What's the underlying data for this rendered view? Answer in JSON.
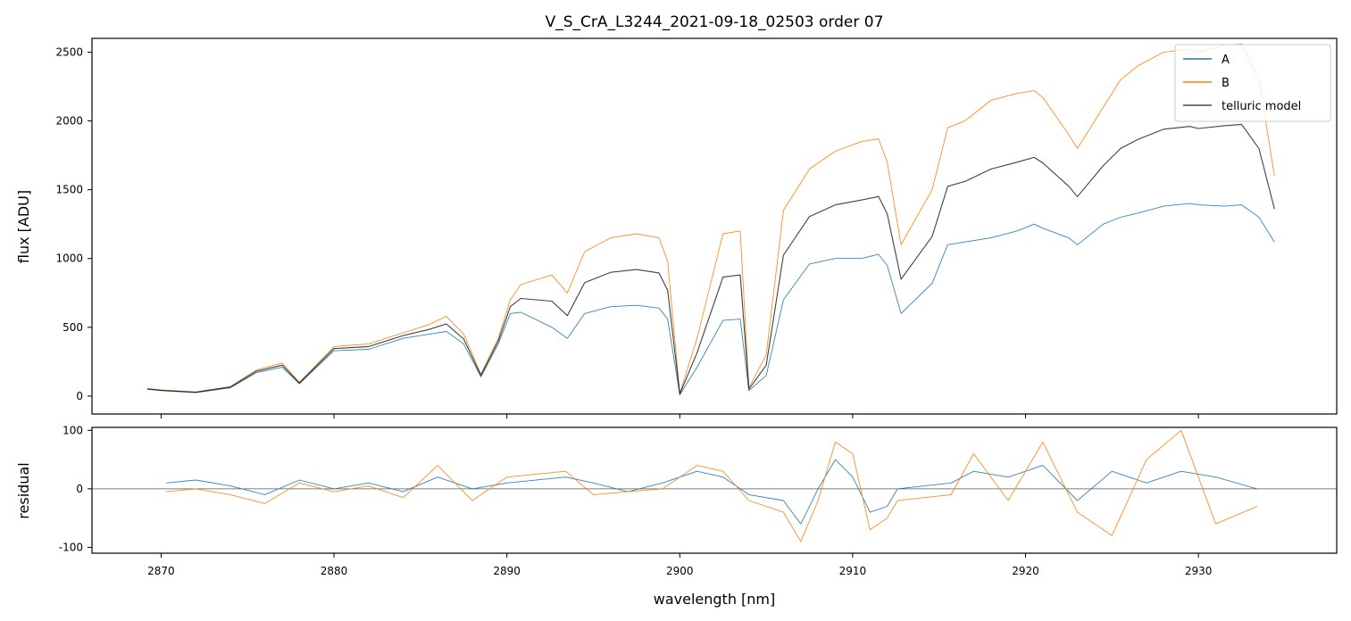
{
  "chart_data": [
    {
      "type": "line",
      "title": "V_S_CrA_L3244_2021-09-18_02503  order 07",
      "xlabel": "",
      "ylabel": "flux [ADU]",
      "xlim": [
        2866,
        2938
      ],
      "ylim": [
        -130,
        2600
      ],
      "xticks": [
        2870,
        2880,
        2890,
        2900,
        2910,
        2920,
        2930
      ],
      "yticks": [
        0,
        500,
        1000,
        1500,
        2000,
        2500
      ],
      "legend_position": "top-right",
      "series": [
        {
          "name": "A",
          "color": "#1f77b4",
          "x": [
            2869.2,
            2870,
            2872,
            2874,
            2875.5,
            2877,
            2878,
            2880,
            2882,
            2884,
            2885.5,
            2886.5,
            2887.5,
            2888.5,
            2889.5,
            2890.2,
            2890.8,
            2892.6,
            2893.5,
            2894.5,
            2896,
            2897.5,
            2898.8,
            2899.3,
            2900,
            2901,
            2902.5,
            2903.5,
            2904,
            2905,
            2906,
            2907.5,
            2909,
            2910.5,
            2911.5,
            2912,
            2912.8,
            2914.6,
            2915.5,
            2916.5,
            2918,
            2919.5,
            2920.5,
            2921,
            2922.5,
            2923,
            2924.5,
            2925.5,
            2926.5,
            2928,
            2929.5,
            2930,
            2931.5,
            2932.5,
            2933.5,
            2934.4
          ],
          "y": [
            50,
            40,
            25,
            60,
            170,
            210,
            90,
            330,
            340,
            420,
            450,
            470,
            380,
            140,
            380,
            600,
            610,
            500,
            420,
            600,
            650,
            660,
            640,
            560,
            10,
            210,
            550,
            560,
            40,
            150,
            700,
            960,
            1000,
            1000,
            1030,
            950,
            600,
            820,
            1100,
            1120,
            1150,
            1200,
            1250,
            1220,
            1150,
            1100,
            1250,
            1300,
            1330,
            1380,
            1400,
            1390,
            1380,
            1390,
            1300,
            1120
          ]
        },
        {
          "name": "B",
          "color": "#ff7f0e",
          "x": [
            2869.2,
            2870,
            2872,
            2874,
            2875.5,
            2877,
            2878,
            2880,
            2882,
            2884,
            2885.5,
            2886.5,
            2887.5,
            2888.5,
            2889.5,
            2890.2,
            2890.8,
            2892.6,
            2893.5,
            2894.5,
            2896,
            2897.5,
            2898.8,
            2899.3,
            2900,
            2901,
            2902.5,
            2903.5,
            2904,
            2905,
            2906,
            2907.5,
            2909,
            2910.5,
            2911.5,
            2912,
            2912.8,
            2914.6,
            2915.5,
            2916.5,
            2918,
            2919.5,
            2920.5,
            2921,
            2922.5,
            2923,
            2924.5,
            2925.5,
            2926.5,
            2928,
            2929.5,
            2930,
            2931.5,
            2932.5,
            2933.5,
            2934.4
          ],
          "y": [
            55,
            45,
            30,
            70,
            190,
            240,
            100,
            360,
            380,
            460,
            520,
            580,
            450,
            160,
            420,
            700,
            810,
            880,
            750,
            1050,
            1150,
            1180,
            1150,
            980,
            20,
            420,
            1180,
            1200,
            60,
            300,
            1350,
            1650,
            1780,
            1850,
            1870,
            1700,
            1100,
            1500,
            1950,
            2000,
            2150,
            2200,
            2220,
            2170,
            1900,
            1800,
            2100,
            2300,
            2400,
            2500,
            2520,
            2500,
            2550,
            2560,
            2300,
            1600
          ]
        },
        {
          "name": "telluric model",
          "color": "#000000",
          "x": [
            2869.2,
            2870,
            2872,
            2874,
            2875.5,
            2877,
            2878,
            2880,
            2882,
            2884,
            2885.5,
            2886.5,
            2887.5,
            2888.5,
            2889.5,
            2890.2,
            2890.8,
            2892.6,
            2893.5,
            2894.5,
            2896,
            2897.5,
            2898.8,
            2899.3,
            2900,
            2901,
            2902.5,
            2903.5,
            2904,
            2905,
            2906,
            2907.5,
            2909,
            2910.5,
            2911.5,
            2912,
            2912.8,
            2914.6,
            2915.5,
            2916.5,
            2918,
            2919.5,
            2920.5,
            2921,
            2922.5,
            2923,
            2924.5,
            2925.5,
            2926.5,
            2928,
            2929.5,
            2930,
            2931.5,
            2932.5,
            2933.5,
            2934.4
          ],
          "y": [
            52,
            42,
            28,
            65,
            180,
            225,
            95,
            345,
            360,
            440,
            485,
            525,
            415,
            150,
            400,
            650,
            710,
            690,
            585,
            825,
            900,
            920,
            895,
            770,
            15,
            315,
            865,
            880,
            50,
            225,
            1025,
            1305,
            1390,
            1425,
            1450,
            1325,
            850,
            1160,
            1525,
            1560,
            1650,
            1700,
            1735,
            1695,
            1525,
            1450,
            1675,
            1800,
            1865,
            1940,
            1960,
            1945,
            1965,
            1975,
            1800,
            1360
          ]
        }
      ]
    },
    {
      "type": "line",
      "title": "",
      "xlabel": "wavelength [nm]",
      "ylabel": "residual",
      "xlim": [
        2866,
        2938
      ],
      "ylim": [
        -110,
        105
      ],
      "xticks": [
        2870,
        2880,
        2890,
        2900,
        2910,
        2920,
        2930
      ],
      "yticks": [
        -100,
        0,
        100
      ],
      "reference_line": 0,
      "series": [
        {
          "name": "A",
          "color": "#1f77b4",
          "x": [
            2870.3,
            2872,
            2874,
            2876,
            2878,
            2880,
            2882,
            2884,
            2886,
            2888,
            2890,
            2893.4,
            2895,
            2897,
            2899,
            2901,
            2902.5,
            2904,
            2906,
            2907,
            2908,
            2909,
            2910,
            2911,
            2912,
            2912.6,
            2915.7,
            2917,
            2919,
            2921,
            2923,
            2925,
            2927,
            2929,
            2931,
            2933.4
          ],
          "y": [
            10,
            15,
            5,
            -10,
            15,
            0,
            10,
            -5,
            20,
            0,
            10,
            20,
            10,
            -5,
            10,
            30,
            20,
            -10,
            -20,
            -60,
            0,
            50,
            20,
            -40,
            -30,
            0,
            10,
            30,
            20,
            40,
            -20,
            30,
            10,
            30,
            20,
            0
          ]
        },
        {
          "name": "B",
          "color": "#ff7f0e",
          "x": [
            2870.3,
            2872,
            2874,
            2876,
            2878,
            2880,
            2882,
            2884,
            2886,
            2888,
            2890,
            2893.4,
            2895,
            2897,
            2899,
            2901,
            2902.5,
            2904,
            2906,
            2907,
            2908,
            2909,
            2910,
            2911,
            2912,
            2912.6,
            2915.7,
            2917,
            2919,
            2921,
            2923,
            2925,
            2927,
            2929,
            2931,
            2933.4
          ],
          "y": [
            -5,
            0,
            -10,
            -25,
            10,
            -5,
            5,
            -15,
            40,
            -20,
            20,
            30,
            -10,
            -5,
            0,
            40,
            30,
            -20,
            -40,
            -90,
            -20,
            80,
            60,
            -70,
            -50,
            -20,
            -10,
            60,
            -20,
            80,
            -40,
            -80,
            50,
            100,
            -60,
            -30
          ]
        }
      ]
    }
  ]
}
